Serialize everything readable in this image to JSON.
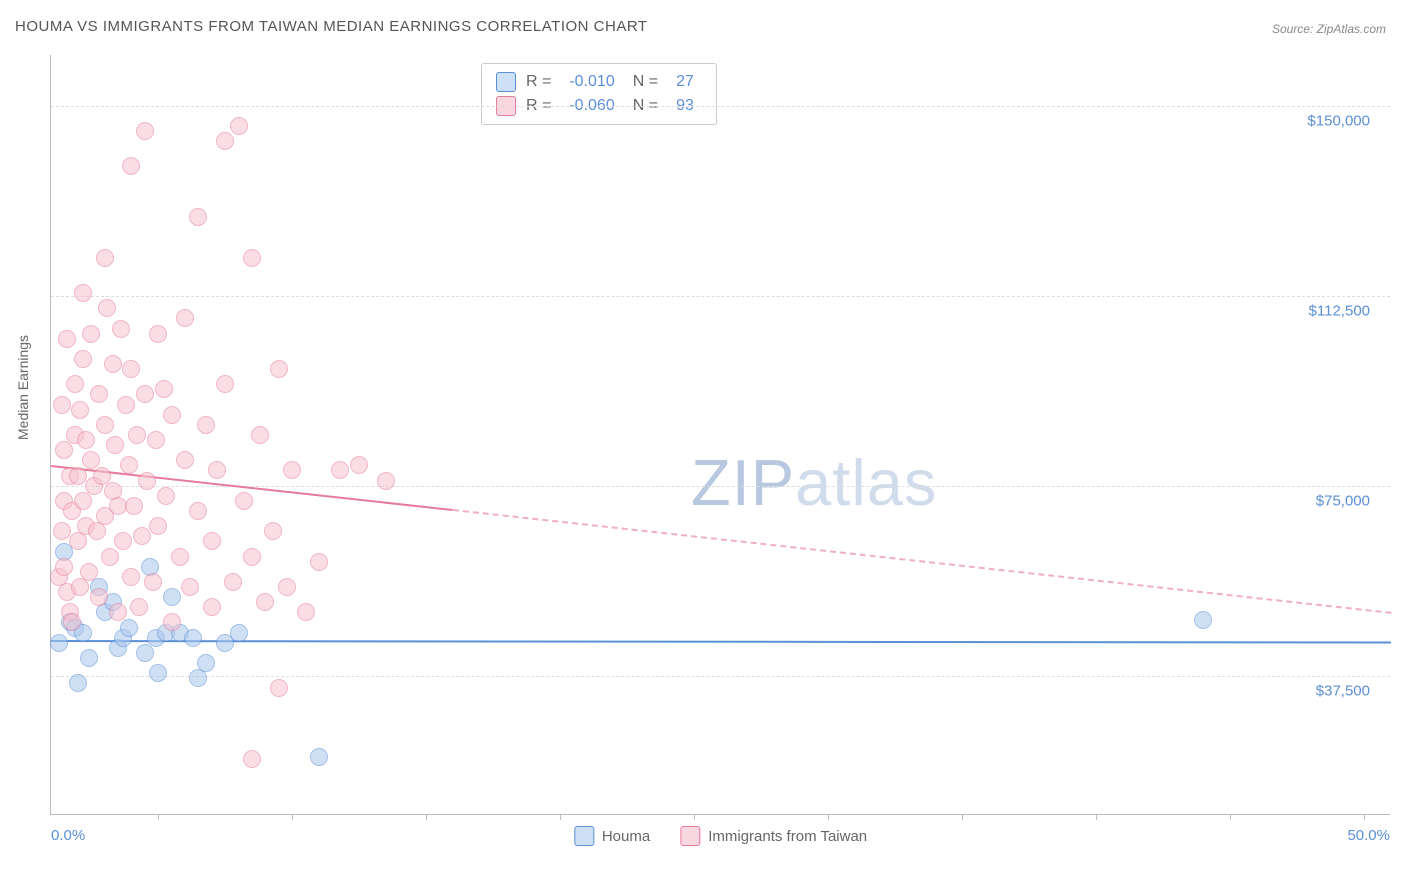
{
  "title": "HOUMA VS IMMIGRANTS FROM TAIWAN MEDIAN EARNINGS CORRELATION CHART",
  "source": "Source: ZipAtlas.com",
  "watermark": "ZIPatlas",
  "chart": {
    "type": "scatter",
    "y_axis_title": "Median Earnings",
    "background_color": "#ffffff",
    "grid_color": "#dddddd",
    "axis_line_color": "#bbbbbb",
    "marker_radius": 9,
    "marker_opacity": 0.55,
    "xlim": [
      0,
      50
    ],
    "ylim": [
      10000,
      160000
    ],
    "x_ticks": [
      0,
      50
    ],
    "x_tick_labels": [
      "0.0%",
      "50.0%"
    ],
    "x_minor_tick_positions_pct": [
      8,
      18,
      28,
      38,
      48,
      58,
      68,
      78,
      88,
      98
    ],
    "y_gridlines": [
      37500,
      75000,
      112500,
      150000
    ],
    "y_tick_labels": [
      "$37,500",
      "$75,000",
      "$112,500",
      "$150,000"
    ],
    "series": [
      {
        "name": "Houma",
        "label": "Houma",
        "color_fill": "#a9c8ec",
        "color_stroke": "#5b8fd6",
        "stats": {
          "R": "-0.010",
          "N": "27"
        },
        "trend": {
          "y_start": 44500,
          "y_end": 44200,
          "solid_until_x": 50,
          "color": "#5b8fd6"
        },
        "points": [
          {
            "x": 0.3,
            "y": 44000
          },
          {
            "x": 0.5,
            "y": 62000
          },
          {
            "x": 0.7,
            "y": 48000
          },
          {
            "x": 0.9,
            "y": 47000
          },
          {
            "x": 1.0,
            "y": 36000
          },
          {
            "x": 1.2,
            "y": 46000
          },
          {
            "x": 1.4,
            "y": 41000
          },
          {
            "x": 1.8,
            "y": 55000
          },
          {
            "x": 2.0,
            "y": 50000
          },
          {
            "x": 2.3,
            "y": 52000
          },
          {
            "x": 2.5,
            "y": 43000
          },
          {
            "x": 2.7,
            "y": 45000
          },
          {
            "x": 2.9,
            "y": 47000
          },
          {
            "x": 3.5,
            "y": 42000
          },
          {
            "x": 3.7,
            "y": 59000
          },
          {
            "x": 3.9,
            "y": 45000
          },
          {
            "x": 4.0,
            "y": 38000
          },
          {
            "x": 4.3,
            "y": 46000
          },
          {
            "x": 4.5,
            "y": 53000
          },
          {
            "x": 4.8,
            "y": 46000
          },
          {
            "x": 5.3,
            "y": 45000
          },
          {
            "x": 5.5,
            "y": 37000
          },
          {
            "x": 5.8,
            "y": 40000
          },
          {
            "x": 6.5,
            "y": 44000
          },
          {
            "x": 7.0,
            "y": 46000
          },
          {
            "x": 10.0,
            "y": 21500
          },
          {
            "x": 43.0,
            "y": 48500
          }
        ]
      },
      {
        "name": "Immigrants from Taiwan",
        "label": "Immigrants from Taiwan",
        "color_fill": "#f6c2d0",
        "color_stroke": "#e77b9b",
        "stats": {
          "R": "-0.060",
          "N": "93"
        },
        "trend": {
          "y_start": 79000,
          "y_end": 50000,
          "solid_until_x": 15,
          "color": "#e77b9b"
        },
        "points": [
          {
            "x": 0.3,
            "y": 57000
          },
          {
            "x": 0.4,
            "y": 66000
          },
          {
            "x": 0.4,
            "y": 91000
          },
          {
            "x": 0.5,
            "y": 82000
          },
          {
            "x": 0.5,
            "y": 72000
          },
          {
            "x": 0.5,
            "y": 59000
          },
          {
            "x": 0.6,
            "y": 54000
          },
          {
            "x": 0.6,
            "y": 104000
          },
          {
            "x": 0.7,
            "y": 77000
          },
          {
            "x": 0.7,
            "y": 50000
          },
          {
            "x": 0.8,
            "y": 70000
          },
          {
            "x": 0.8,
            "y": 48000
          },
          {
            "x": 0.9,
            "y": 95000
          },
          {
            "x": 0.9,
            "y": 85000
          },
          {
            "x": 1.0,
            "y": 77000
          },
          {
            "x": 1.0,
            "y": 64000
          },
          {
            "x": 1.1,
            "y": 55000
          },
          {
            "x": 1.1,
            "y": 90000
          },
          {
            "x": 1.2,
            "y": 100000
          },
          {
            "x": 1.2,
            "y": 72000
          },
          {
            "x": 1.2,
            "y": 113000
          },
          {
            "x": 1.3,
            "y": 84000
          },
          {
            "x": 1.3,
            "y": 67000
          },
          {
            "x": 1.4,
            "y": 58000
          },
          {
            "x": 1.5,
            "y": 80000
          },
          {
            "x": 1.5,
            "y": 105000
          },
          {
            "x": 1.6,
            "y": 75000
          },
          {
            "x": 1.7,
            "y": 66000
          },
          {
            "x": 1.8,
            "y": 93000
          },
          {
            "x": 1.8,
            "y": 53000
          },
          {
            "x": 1.9,
            "y": 77000
          },
          {
            "x": 2.0,
            "y": 69000
          },
          {
            "x": 2.0,
            "y": 87000
          },
          {
            "x": 2.0,
            "y": 120000
          },
          {
            "x": 2.1,
            "y": 110000
          },
          {
            "x": 2.2,
            "y": 61000
          },
          {
            "x": 2.3,
            "y": 99000
          },
          {
            "x": 2.3,
            "y": 74000
          },
          {
            "x": 2.4,
            "y": 83000
          },
          {
            "x": 2.5,
            "y": 50000
          },
          {
            "x": 2.5,
            "y": 71000
          },
          {
            "x": 2.6,
            "y": 106000
          },
          {
            "x": 2.7,
            "y": 64000
          },
          {
            "x": 2.8,
            "y": 91000
          },
          {
            "x": 2.9,
            "y": 79000
          },
          {
            "x": 3.0,
            "y": 57000
          },
          {
            "x": 3.0,
            "y": 98000
          },
          {
            "x": 3.0,
            "y": 138000
          },
          {
            "x": 3.1,
            "y": 71000
          },
          {
            "x": 3.2,
            "y": 85000
          },
          {
            "x": 3.3,
            "y": 51000
          },
          {
            "x": 3.4,
            "y": 65000
          },
          {
            "x": 3.5,
            "y": 93000
          },
          {
            "x": 3.5,
            "y": 145000
          },
          {
            "x": 3.6,
            "y": 76000
          },
          {
            "x": 3.8,
            "y": 56000
          },
          {
            "x": 3.9,
            "y": 84000
          },
          {
            "x": 4.0,
            "y": 105000
          },
          {
            "x": 4.0,
            "y": 67000
          },
          {
            "x": 4.2,
            "y": 94000
          },
          {
            "x": 4.3,
            "y": 73000
          },
          {
            "x": 4.5,
            "y": 48000
          },
          {
            "x": 4.5,
            "y": 89000
          },
          {
            "x": 4.8,
            "y": 61000
          },
          {
            "x": 5.0,
            "y": 80000
          },
          {
            "x": 5.0,
            "y": 108000
          },
          {
            "x": 5.2,
            "y": 55000
          },
          {
            "x": 5.5,
            "y": 70000
          },
          {
            "x": 5.5,
            "y": 128000
          },
          {
            "x": 5.8,
            "y": 87000
          },
          {
            "x": 6.0,
            "y": 51000
          },
          {
            "x": 6.0,
            "y": 64000
          },
          {
            "x": 6.2,
            "y": 78000
          },
          {
            "x": 6.5,
            "y": 95000
          },
          {
            "x": 6.5,
            "y": 143000
          },
          {
            "x": 6.8,
            "y": 56000
          },
          {
            "x": 7.0,
            "y": 146000
          },
          {
            "x": 7.2,
            "y": 72000
          },
          {
            "x": 7.5,
            "y": 61000
          },
          {
            "x": 7.5,
            "y": 120000
          },
          {
            "x": 7.8,
            "y": 85000
          },
          {
            "x": 8.0,
            "y": 52000
          },
          {
            "x": 8.3,
            "y": 66000
          },
          {
            "x": 8.5,
            "y": 98000
          },
          {
            "x": 8.5,
            "y": 35000
          },
          {
            "x": 8.8,
            "y": 55000
          },
          {
            "x": 9.0,
            "y": 78000
          },
          {
            "x": 9.5,
            "y": 50000
          },
          {
            "x": 10.0,
            "y": 60000
          },
          {
            "x": 10.8,
            "y": 78000
          },
          {
            "x": 11.5,
            "y": 79000
          },
          {
            "x": 12.5,
            "y": 76000
          },
          {
            "x": 7.5,
            "y": 21000
          }
        ]
      }
    ]
  },
  "legend_stats_labels": {
    "R": "R  =",
    "N": "N ="
  }
}
